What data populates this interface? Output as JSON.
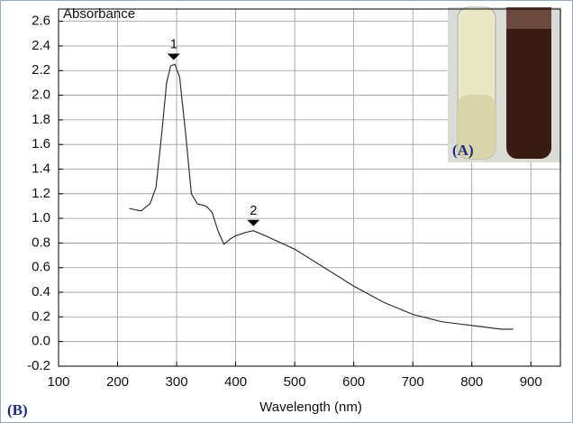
{
  "chart_data": {
    "type": "line",
    "y_label": "Absorbance",
    "x_label": "Wavelength (nm)",
    "panel_label": "(B)",
    "inset_label": "(A)",
    "x": [
      220,
      240,
      255,
      265,
      275,
      283,
      290,
      297,
      305,
      315,
      325,
      335,
      350,
      360,
      370,
      380,
      390,
      400,
      420,
      430,
      450,
      500,
      550,
      600,
      650,
      700,
      750,
      800,
      850,
      870
    ],
    "values": [
      1.08,
      1.06,
      1.12,
      1.25,
      1.7,
      2.1,
      2.24,
      2.25,
      2.15,
      1.7,
      1.2,
      1.12,
      1.1,
      1.05,
      0.9,
      0.79,
      0.83,
      0.86,
      0.89,
      0.9,
      0.86,
      0.75,
      0.6,
      0.45,
      0.32,
      0.22,
      0.16,
      0.13,
      0.1,
      0.1
    ],
    "color": "#333333",
    "annotations": [
      {
        "text": "1",
        "x": 295,
        "y": 2.25
      },
      {
        "text": "2",
        "x": 430,
        "y": 0.9
      }
    ],
    "xlim": [
      100,
      950
    ],
    "xticks": [
      100,
      200,
      300,
      400,
      500,
      600,
      700,
      800,
      900
    ],
    "ylim": [
      -0.2,
      2.7
    ],
    "yticks": [
      -0.2,
      {
        "value": 0,
        "label": "0.0"
      },
      0.2,
      0.4,
      0.6,
      0.8,
      {
        "value": 1,
        "label": "1.0"
      },
      1.2,
      1.4,
      1.6,
      1.8,
      {
        "value": 2,
        "label": "2.0"
      },
      2.2,
      2.4,
      2.6
    ],
    "grid": true
  }
}
